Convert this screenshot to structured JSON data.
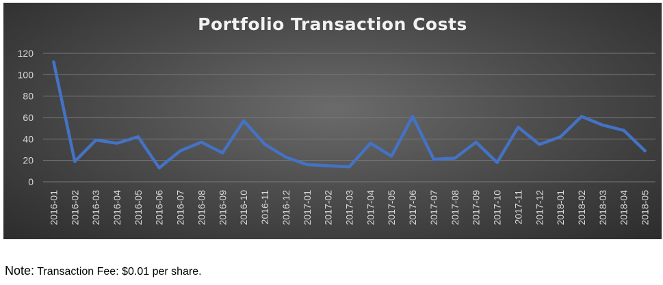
{
  "chart_data": {
    "type": "line",
    "title": "Portfolio Transaction Costs",
    "xlabel": "",
    "ylabel": "",
    "ylim": [
      0,
      120
    ],
    "yticks": [
      0,
      20,
      40,
      60,
      80,
      100,
      120
    ],
    "grid": true,
    "legend": "none",
    "categories": [
      "2016-01",
      "2016-02",
      "2016-03",
      "2016-04",
      "2016-05",
      "2016-06",
      "2016-07",
      "2016-08",
      "2016-09",
      "2016-10",
      "2016-11",
      "2016-12",
      "2017-01",
      "2017-02",
      "2017-03",
      "2017-04",
      "2017-05",
      "2017-06",
      "2017-07",
      "2017-08",
      "2017-09",
      "2017-10",
      "2017-11",
      "2017-12",
      "2018-01",
      "2018-02",
      "2018-03",
      "2018-04",
      "2018-05"
    ],
    "series": [
      {
        "color": "#4472c4",
        "values": [
          112,
          19,
          39,
          36,
          42,
          13,
          29,
          37,
          27,
          57,
          35,
          23,
          16,
          15,
          14,
          36,
          24,
          61,
          21,
          22,
          37,
          18,
          51,
          35,
          42,
          61,
          53,
          48,
          29
        ]
      }
    ]
  },
  "note": {
    "label": "Note:",
    "text": " Transaction Fee: $0.01 per share."
  }
}
